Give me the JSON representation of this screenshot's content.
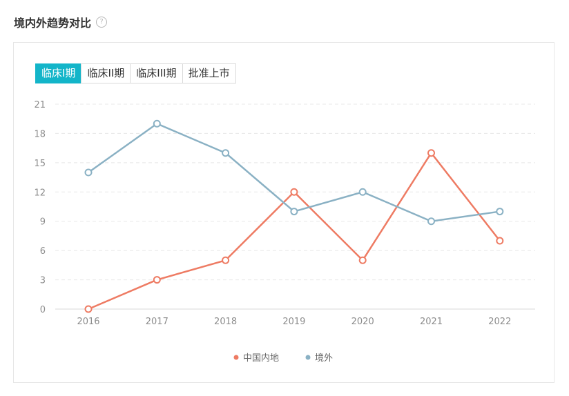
{
  "section": {
    "title": "境内外趋势对比",
    "help_icon": "question-circle-icon"
  },
  "tabs": [
    {
      "label": "临床I期",
      "active": true
    },
    {
      "label": "临床II期",
      "active": false
    },
    {
      "label": "临床III期",
      "active": false
    },
    {
      "label": "批准上市",
      "active": false
    }
  ],
  "colors": {
    "tab_active": "#13b5c9",
    "series_domestic": "#ee7b63",
    "series_overseas": "#8ab1c4"
  },
  "chart_data": {
    "type": "line",
    "categories": [
      "2016",
      "2017",
      "2018",
      "2019",
      "2020",
      "2021",
      "2022"
    ],
    "ylim": [
      0,
      21
    ],
    "yticks": [
      "0",
      "3",
      "6",
      "9",
      "12",
      "15",
      "18",
      "21"
    ],
    "grid": true,
    "legend_position": "bottom-center",
    "series": [
      {
        "name": "中国内地",
        "color": "#ee7b63",
        "values": [
          0,
          3,
          5,
          12,
          5,
          16,
          7
        ]
      },
      {
        "name": "境外",
        "color": "#8ab1c4",
        "values": [
          14,
          19,
          16,
          10,
          12,
          9,
          10
        ]
      }
    ]
  }
}
